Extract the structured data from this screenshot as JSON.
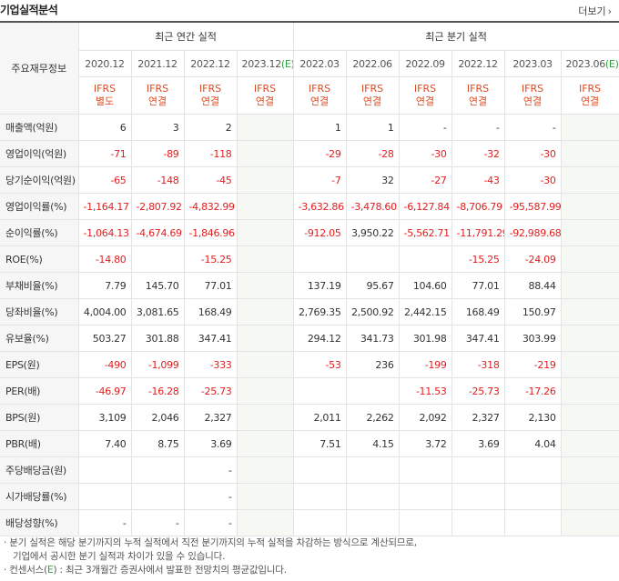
{
  "title": "기업실적분석",
  "more_label": "더보기",
  "headers": {
    "corner": "주요재무정보",
    "annual_group": "최근 연간 실적",
    "quarter_group": "최근 분기 실적",
    "periods": [
      "2020.12",
      "2021.12",
      "2022.12",
      "2023.12",
      "2022.03",
      "2022.06",
      "2022.09",
      "2022.12",
      "2023.03",
      "2023.06"
    ],
    "est_suffix": "(E)",
    "ifrs": [
      [
        "IFRS",
        "별도"
      ],
      [
        "IFRS",
        "연결"
      ],
      [
        "IFRS",
        "연결"
      ],
      [
        "IFRS",
        "연결"
      ],
      [
        "IFRS",
        "연결"
      ],
      [
        "IFRS",
        "연결"
      ],
      [
        "IFRS",
        "연결"
      ],
      [
        "IFRS",
        "연결"
      ],
      [
        "IFRS",
        "연결"
      ],
      [
        "IFRS",
        "연결"
      ]
    ]
  },
  "rows": [
    {
      "label": "매출액(억원)",
      "values": [
        "6",
        "3",
        "2",
        "",
        "1",
        "1",
        "-",
        "-",
        "-",
        ""
      ]
    },
    {
      "label": "영업이익(억원)",
      "values": [
        "-71",
        "-89",
        "-118",
        "",
        "-29",
        "-28",
        "-30",
        "-32",
        "-30",
        ""
      ]
    },
    {
      "label": "당기순이익(억원)",
      "values": [
        "-65",
        "-148",
        "-45",
        "",
        "-7",
        "32",
        "-27",
        "-43",
        "-30",
        ""
      ]
    },
    {
      "label": "영업이익률(%)",
      "values": [
        "-1,164.17",
        "-2,807.92",
        "-4,832.99",
        "",
        "-3,632.86",
        "-3,478.60",
        "-6,127.84",
        "-8,706.79",
        "-95,587.99",
        ""
      ]
    },
    {
      "label": "순이익률(%)",
      "values": [
        "-1,064.13",
        "-4,674.69",
        "-1,846.96",
        "",
        "-912.05",
        "3,950.22",
        "-5,562.71",
        "-11,791.29",
        "-92,989.68",
        ""
      ]
    },
    {
      "label": "ROE(%)",
      "values": [
        "-14.80",
        "",
        "-15.25",
        "",
        "",
        "",
        "",
        "-15.25",
        "-24.09",
        ""
      ]
    },
    {
      "label": "부채비율(%)",
      "values": [
        "7.79",
        "145.70",
        "77.01",
        "",
        "137.19",
        "95.67",
        "104.60",
        "77.01",
        "88.44",
        ""
      ]
    },
    {
      "label": "당좌비율(%)",
      "values": [
        "4,004.00",
        "3,081.65",
        "168.49",
        "",
        "2,769.35",
        "2,500.92",
        "2,442.15",
        "168.49",
        "150.97",
        ""
      ]
    },
    {
      "label": "유보율(%)",
      "values": [
        "503.27",
        "301.88",
        "347.41",
        "",
        "294.12",
        "341.73",
        "301.98",
        "347.41",
        "303.99",
        ""
      ]
    },
    {
      "label": "EPS(원)",
      "values": [
        "-490",
        "-1,099",
        "-333",
        "",
        "-53",
        "236",
        "-199",
        "-318",
        "-219",
        ""
      ]
    },
    {
      "label": "PER(배)",
      "values": [
        "-46.97",
        "-16.28",
        "-25.73",
        "",
        "",
        "",
        "-11.53",
        "-25.73",
        "-17.26",
        ""
      ]
    },
    {
      "label": "BPS(원)",
      "values": [
        "3,109",
        "2,046",
        "2,327",
        "",
        "2,011",
        "2,262",
        "2,092",
        "2,327",
        "2,130",
        ""
      ]
    },
    {
      "label": "PBR(배)",
      "values": [
        "7.40",
        "8.75",
        "3.69",
        "",
        "7.51",
        "4.15",
        "3.72",
        "3.69",
        "4.04",
        ""
      ]
    },
    {
      "label": "주당배당금(원)",
      "values": [
        "",
        "",
        "-",
        "",
        "",
        "",
        "",
        "",
        "",
        ""
      ]
    },
    {
      "label": "시가배당률(%)",
      "values": [
        "",
        "",
        "-",
        "",
        "",
        "",
        "",
        "",
        "",
        ""
      ]
    },
    {
      "label": "배당성향(%)",
      "values": [
        "-",
        "-",
        "-",
        "",
        "",
        "",
        "",
        "",
        "",
        ""
      ]
    }
  ],
  "notes": {
    "line1": "· 분기 실적은 해당 분기까지의 누적 실적에서 직전 분기까지의 누적 실적을 차감하는 방식으로 계산되므로,",
    "line2": "기업에서 공시한 분기 실적과 차이가 있을 수 있습니다.",
    "line3_prefix": "· 컨센서스(",
    "line3_e": "E",
    "line3_suffix": ") : 최근 3개월간 증권사에서 발표한 전망치의 평균값입니다."
  },
  "colors": {
    "negative": "#e01f1f",
    "ifrs": "#e04a1f",
    "estimate_bg": "#f6f8f3",
    "estimate_mark": "#2d9f3a"
  }
}
